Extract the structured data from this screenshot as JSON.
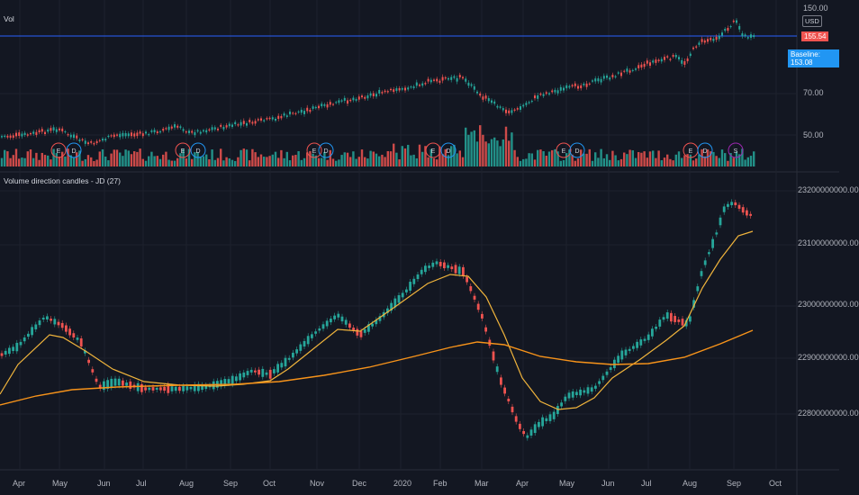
{
  "top_pane": {
    "title": "Vol",
    "currency": "USD",
    "price_ticks": [
      "150.00",
      "70.00",
      "50.00"
    ],
    "price_now_tag": "155.54",
    "second_tag": "Baseline: 153.08"
  },
  "bottom_pane": {
    "title": "Volume direction candles - JD (27)",
    "value_ticks": [
      "23200000000.00",
      "23100000000.00",
      "23000000000.00",
      "22900000000.00",
      "22800000000.00"
    ]
  },
  "time_axis": [
    "Apr",
    "May",
    "Jun",
    "Jul",
    "Aug",
    "Sep",
    "Oct",
    "Nov",
    "Dec",
    "2020",
    "Feb",
    "Mar",
    "Apr",
    "May",
    "Jun",
    "Jul",
    "Aug",
    "Sep",
    "Oct"
  ],
  "event_markers": [
    {
      "label": "E",
      "type": "earnings"
    },
    {
      "label": "D",
      "type": "dividend"
    },
    {
      "label": "E",
      "type": "earnings"
    },
    {
      "label": "D",
      "type": "dividend"
    },
    {
      "label": "E",
      "type": "earnings"
    },
    {
      "label": "D",
      "type": "dividend"
    },
    {
      "label": "E",
      "type": "earnings"
    },
    {
      "label": "D",
      "type": "dividend"
    },
    {
      "label": "E",
      "type": "earnings"
    },
    {
      "label": "D",
      "type": "dividend"
    },
    {
      "label": "E",
      "type": "earnings"
    },
    {
      "label": "D",
      "type": "dividend"
    },
    {
      "label": "S",
      "type": "split"
    }
  ],
  "colors": {
    "background": "#131722",
    "up": "#26a69a",
    "down": "#ef5350",
    "ma_fast": "#f0b43c",
    "ma_slow": "#f7931a",
    "price_line": "#2962ff",
    "grid": "#1e222d",
    "earnings_marker": "#ef5350",
    "dividend_marker": "#2196f3"
  }
}
